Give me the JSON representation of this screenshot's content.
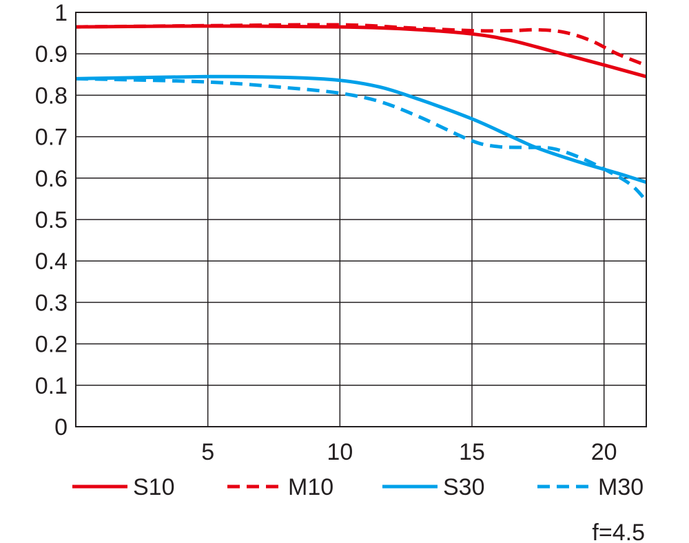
{
  "chart_data": {
    "type": "line",
    "title": "",
    "xlabel": "",
    "ylabel": "",
    "xlim": [
      0,
      21.6
    ],
    "ylim": [
      0,
      1
    ],
    "grid": true,
    "x_ticks": [
      "5",
      "10",
      "15",
      "20"
    ],
    "x_tick_values": [
      5,
      10,
      15,
      20
    ],
    "y_ticks": [
      "0",
      "0.1",
      "0.2",
      "0.3",
      "0.4",
      "0.5",
      "0.6",
      "0.7",
      "0.8",
      "0.9",
      "1"
    ],
    "y_tick_values": [
      0,
      0.1,
      0.2,
      0.3,
      0.4,
      0.5,
      0.6,
      0.7,
      0.8,
      0.9,
      1
    ],
    "legend_placement": "bottom",
    "annotation": "f=4.5",
    "series": [
      {
        "name": "S10",
        "color": "#e60012",
        "dashed": false,
        "x": [
          0,
          5,
          10,
          12.5,
          15,
          16.5,
          18,
          20,
          21.6
        ],
        "y": [
          0.965,
          0.967,
          0.965,
          0.96,
          0.948,
          0.932,
          0.907,
          0.873,
          0.845
        ]
      },
      {
        "name": "M10",
        "color": "#e60012",
        "dashed": true,
        "x": [
          0,
          5,
          10,
          12.5,
          15,
          16.5,
          17.5,
          18.5,
          19.5,
          20.5,
          21.6
        ],
        "y": [
          0.965,
          0.968,
          0.97,
          0.963,
          0.956,
          0.956,
          0.958,
          0.952,
          0.932,
          0.9,
          0.872
        ]
      },
      {
        "name": "S30",
        "color": "#00a0e9",
        "dashed": false,
        "x": [
          0,
          5,
          8,
          10,
          11.5,
          13,
          15,
          16.5,
          17.5,
          19,
          20.5,
          21.6
        ],
        "y": [
          0.84,
          0.845,
          0.843,
          0.836,
          0.82,
          0.79,
          0.743,
          0.7,
          0.672,
          0.64,
          0.612,
          0.59
        ]
      },
      {
        "name": "M30",
        "color": "#00a0e9",
        "dashed": true,
        "x": [
          0,
          5,
          8,
          10,
          11.5,
          13,
          15,
          16,
          17,
          18,
          19,
          20,
          21,
          21.6
        ],
        "y": [
          0.84,
          0.832,
          0.818,
          0.805,
          0.785,
          0.748,
          0.69,
          0.676,
          0.674,
          0.672,
          0.652,
          0.622,
          0.585,
          0.545
        ]
      }
    ]
  }
}
